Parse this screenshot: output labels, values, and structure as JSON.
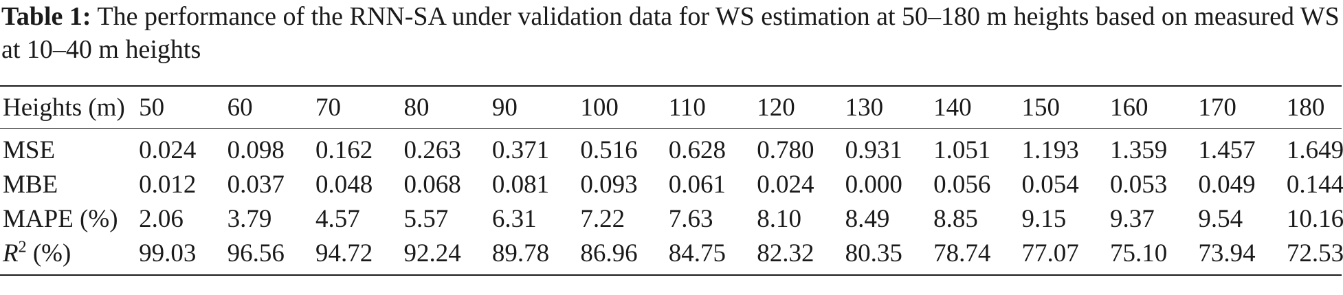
{
  "caption": {
    "label": "Table 1:",
    "text": " The performance of the RNN-SA under validation data for WS estimation at 50–180 m heights based on measured WS at 10–40 m heights"
  },
  "table": {
    "header_label": "Heights (m)",
    "columns": [
      "50",
      "60",
      "70",
      "80",
      "90",
      "100",
      "110",
      "120",
      "130",
      "140",
      "150",
      "160",
      "170",
      "180"
    ],
    "rows": [
      {
        "label": "MSE",
        "values": [
          "0.024",
          "0.098",
          "0.162",
          "0.263",
          "0.371",
          "0.516",
          "0.628",
          "0.780",
          "0.931",
          "1.051",
          "1.193",
          "1.359",
          "1.457",
          "1.649"
        ]
      },
      {
        "label": "MBE",
        "values": [
          "0.012",
          "0.037",
          "0.048",
          "0.068",
          "0.081",
          "0.093",
          "0.061",
          "0.024",
          "0.000",
          "0.056",
          "0.054",
          "0.053",
          "0.049",
          "0.144"
        ]
      },
      {
        "label": "MAPE (%)",
        "values": [
          "2.06",
          "3.79",
          "4.57",
          "5.57",
          "6.31",
          "7.22",
          "7.63",
          "8.10",
          "8.49",
          "8.85",
          "9.15",
          "9.37",
          "9.54",
          "10.16"
        ]
      },
      {
        "label_main": "R",
        "label_sup": "2",
        "label_suffix": " (%)",
        "values": [
          "99.03",
          "96.56",
          "94.72",
          "92.24",
          "89.78",
          "86.96",
          "84.75",
          "82.32",
          "80.35",
          "78.74",
          "77.07",
          "75.10",
          "73.94",
          "72.53"
        ]
      }
    ]
  }
}
